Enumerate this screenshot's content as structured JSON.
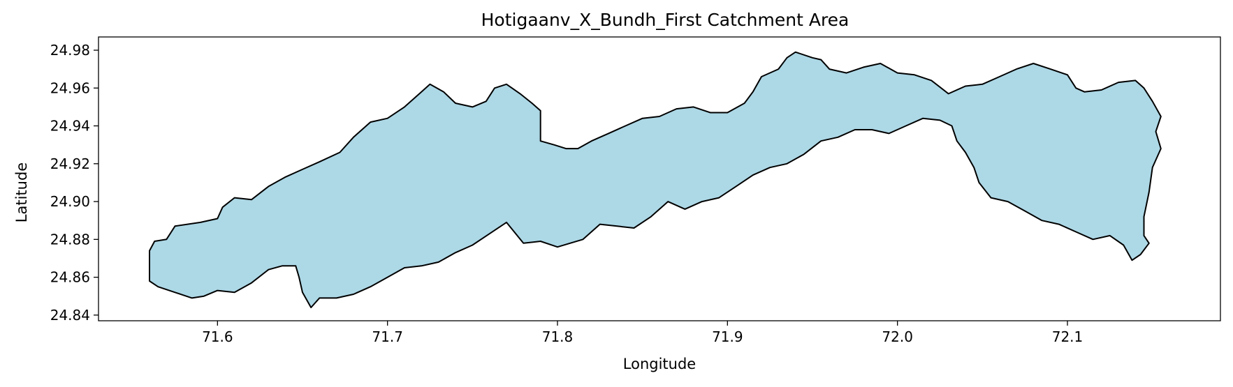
{
  "figure": {
    "title": "Hotigaanv_X_Bundh_First Catchment Area",
    "xlabel": "Longitude",
    "ylabel": "Latitude"
  },
  "chart_data": {
    "type": "map",
    "title": "Hotigaanv_X_Bundh_First Catchment Area",
    "xlabel": "Longitude",
    "ylabel": "Latitude",
    "xlim": [
      71.53,
      72.19
    ],
    "ylim": [
      24.837,
      24.987
    ],
    "x_ticks": [
      71.6,
      71.7,
      71.8,
      71.9,
      72.0,
      72.1
    ],
    "y_ticks": [
      24.84,
      24.86,
      24.88,
      24.9,
      24.92,
      24.94,
      24.96,
      24.98
    ],
    "grid": false,
    "legend": "none",
    "fill_color": "#add8e6",
    "edge_color": "#000000",
    "polygon": [
      [
        71.56,
        24.874
      ],
      [
        71.563,
        24.879
      ],
      [
        71.57,
        24.88
      ],
      [
        71.575,
        24.887
      ],
      [
        71.59,
        24.889
      ],
      [
        71.6,
        24.891
      ],
      [
        71.603,
        24.897
      ],
      [
        71.61,
        24.902
      ],
      [
        71.62,
        24.901
      ],
      [
        71.63,
        24.908
      ],
      [
        71.64,
        24.913
      ],
      [
        71.65,
        24.917
      ],
      [
        71.66,
        24.921
      ],
      [
        71.672,
        24.926
      ],
      [
        71.68,
        24.934
      ],
      [
        71.69,
        24.942
      ],
      [
        71.7,
        24.944
      ],
      [
        71.71,
        24.95
      ],
      [
        71.72,
        24.958
      ],
      [
        71.725,
        24.962
      ],
      [
        71.733,
        24.958
      ],
      [
        71.74,
        24.952
      ],
      [
        71.75,
        24.95
      ],
      [
        71.758,
        24.953
      ],
      [
        71.763,
        24.96
      ],
      [
        71.77,
        24.962
      ],
      [
        71.778,
        24.957
      ],
      [
        71.785,
        24.952
      ],
      [
        71.79,
        24.948
      ],
      [
        71.79,
        24.94
      ],
      [
        71.79,
        24.932
      ],
      [
        71.798,
        24.93
      ],
      [
        71.805,
        24.928
      ],
      [
        71.812,
        24.928
      ],
      [
        71.82,
        24.932
      ],
      [
        71.83,
        24.936
      ],
      [
        71.84,
        24.94
      ],
      [
        71.85,
        24.944
      ],
      [
        71.86,
        24.945
      ],
      [
        71.87,
        24.949
      ],
      [
        71.88,
        24.95
      ],
      [
        71.89,
        24.947
      ],
      [
        71.9,
        24.947
      ],
      [
        71.91,
        24.952
      ],
      [
        71.915,
        24.958
      ],
      [
        71.92,
        24.966
      ],
      [
        71.93,
        24.97
      ],
      [
        71.935,
        24.976
      ],
      [
        71.94,
        24.979
      ],
      [
        71.95,
        24.976
      ],
      [
        71.955,
        24.975
      ],
      [
        71.96,
        24.97
      ],
      [
        71.97,
        24.968
      ],
      [
        71.98,
        24.971
      ],
      [
        71.99,
        24.973
      ],
      [
        72.0,
        24.968
      ],
      [
        72.01,
        24.967
      ],
      [
        72.02,
        24.964
      ],
      [
        72.03,
        24.957
      ],
      [
        72.04,
        24.961
      ],
      [
        72.05,
        24.962
      ],
      [
        72.06,
        24.966
      ],
      [
        72.07,
        24.97
      ],
      [
        72.08,
        24.973
      ],
      [
        72.09,
        24.97
      ],
      [
        72.1,
        24.967
      ],
      [
        72.105,
        24.96
      ],
      [
        72.11,
        24.958
      ],
      [
        72.12,
        24.959
      ],
      [
        72.13,
        24.963
      ],
      [
        72.14,
        24.964
      ],
      [
        72.145,
        24.96
      ],
      [
        72.15,
        24.953
      ],
      [
        72.155,
        24.945
      ],
      [
        72.152,
        24.937
      ],
      [
        72.155,
        24.928
      ],
      [
        72.15,
        24.918
      ],
      [
        72.148,
        24.905
      ],
      [
        72.145,
        24.892
      ],
      [
        72.145,
        24.882
      ],
      [
        72.148,
        24.878
      ],
      [
        72.143,
        24.872
      ],
      [
        72.138,
        24.869
      ],
      [
        72.133,
        24.877
      ],
      [
        72.125,
        24.882
      ],
      [
        72.115,
        24.88
      ],
      [
        72.105,
        24.884
      ],
      [
        72.095,
        24.888
      ],
      [
        72.085,
        24.89
      ],
      [
        72.075,
        24.895
      ],
      [
        72.065,
        24.9
      ],
      [
        72.055,
        24.902
      ],
      [
        72.048,
        24.91
      ],
      [
        72.045,
        24.918
      ],
      [
        72.04,
        24.926
      ],
      [
        72.035,
        24.932
      ],
      [
        72.032,
        24.94
      ],
      [
        72.025,
        24.943
      ],
      [
        72.015,
        24.944
      ],
      [
        72.005,
        24.94
      ],
      [
        71.995,
        24.936
      ],
      [
        71.985,
        24.938
      ],
      [
        71.975,
        24.938
      ],
      [
        71.965,
        24.934
      ],
      [
        71.955,
        24.932
      ],
      [
        71.945,
        24.925
      ],
      [
        71.935,
        24.92
      ],
      [
        71.925,
        24.918
      ],
      [
        71.915,
        24.914
      ],
      [
        71.905,
        24.908
      ],
      [
        71.895,
        24.902
      ],
      [
        71.885,
        24.9
      ],
      [
        71.875,
        24.896
      ],
      [
        71.865,
        24.9
      ],
      [
        71.855,
        24.892
      ],
      [
        71.845,
        24.886
      ],
      [
        71.835,
        24.887
      ],
      [
        71.825,
        24.888
      ],
      [
        71.815,
        24.88
      ],
      [
        71.8,
        24.876
      ],
      [
        71.79,
        24.879
      ],
      [
        71.78,
        24.878
      ],
      [
        71.77,
        24.889
      ],
      [
        71.76,
        24.883
      ],
      [
        71.75,
        24.877
      ],
      [
        71.74,
        24.873
      ],
      [
        71.73,
        24.868
      ],
      [
        71.72,
        24.866
      ],
      [
        71.71,
        24.865
      ],
      [
        71.7,
        24.86
      ],
      [
        71.69,
        24.855
      ],
      [
        71.68,
        24.851
      ],
      [
        71.67,
        24.849
      ],
      [
        71.66,
        24.849
      ],
      [
        71.655,
        24.844
      ],
      [
        71.65,
        24.852
      ],
      [
        71.648,
        24.86
      ],
      [
        71.646,
        24.866
      ],
      [
        71.638,
        24.866
      ],
      [
        71.63,
        24.864
      ],
      [
        71.62,
        24.857
      ],
      [
        71.61,
        24.852
      ],
      [
        71.6,
        24.853
      ],
      [
        71.592,
        24.85
      ],
      [
        71.585,
        24.849
      ],
      [
        71.575,
        24.852
      ],
      [
        71.565,
        24.855
      ],
      [
        71.56,
        24.858
      ]
    ]
  }
}
